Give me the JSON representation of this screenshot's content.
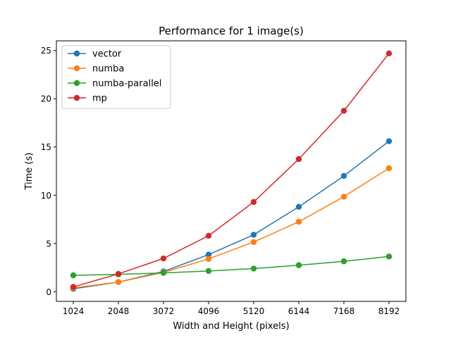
{
  "chart_data": {
    "type": "line",
    "title": "Performance for 1 image(s)",
    "xlabel": "Width and Height (pixels)",
    "ylabel": "Time (s)",
    "x": [
      1024,
      2048,
      3072,
      4096,
      5120,
      6144,
      7168,
      8192
    ],
    "xticks": [
      "1024",
      "2048",
      "3072",
      "4096",
      "5120",
      "6144",
      "7168",
      "8192"
    ],
    "yticks": [
      0,
      5,
      10,
      15,
      20,
      25
    ],
    "xlim": [
      640,
      8576
    ],
    "ylim": [
      -1.0,
      26.0
    ],
    "grid": false,
    "legend_position": "top-left",
    "series": [
      {
        "name": "vector",
        "color": "#1f77b4",
        "values": [
          0.3,
          1.0,
          2.1,
          3.85,
          5.9,
          8.8,
          12.0,
          15.6
        ]
      },
      {
        "name": "numba",
        "color": "#ff7f0e",
        "values": [
          0.4,
          1.0,
          2.0,
          3.4,
          5.15,
          7.25,
          9.85,
          12.8
        ]
      },
      {
        "name": "numba-parallel",
        "color": "#2ca02c",
        "values": [
          1.7,
          1.8,
          1.95,
          2.15,
          2.4,
          2.75,
          3.15,
          3.65
        ]
      },
      {
        "name": "mp",
        "color": "#d62728",
        "values": [
          0.5,
          1.85,
          3.45,
          5.8,
          9.3,
          13.75,
          18.75,
          24.7
        ]
      }
    ]
  }
}
